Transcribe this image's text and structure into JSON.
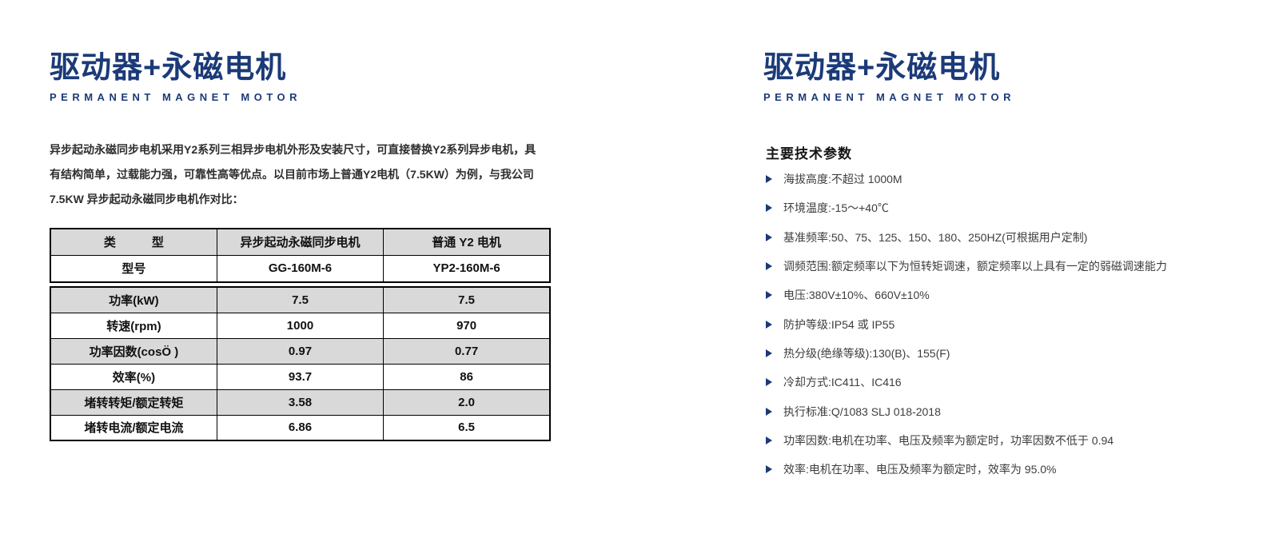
{
  "page": {
    "colors": {
      "accent": "#1b3a78",
      "table_gray": "#d9d9d9"
    },
    "left": {
      "title": "驱动器+永磁电机",
      "subtitle": "PERMANENT MAGNET MOTOR",
      "intro_lines": [
        "异步起动永磁同步电机采用Y2系列三相异步电机外形及安装尺寸，可直接替换Y2系列异步电机，具",
        "有结构简单，过载能力强，可靠性高等优点。以目前市场上普通Y2电机（7.5KW）为例，与我公司",
        "7.5KW 异步起动永磁同步电机作对比："
      ],
      "table": {
        "headers": [
          "类　　　型",
          "异步起动永磁同步电机",
          "普通 Y2 电机"
        ],
        "rows": [
          {
            "label": "型号",
            "pm": "GG-160M-6",
            "y2": "YP2-160M-6"
          },
          {
            "label": "功率(kW)",
            "pm": "7.5",
            "y2": "7.5"
          },
          {
            "label": "转速(rpm)",
            "pm": "1000",
            "y2": "970"
          },
          {
            "label": "功率因数(cosÖ )",
            "pm": "0.97",
            "y2": "0.77"
          },
          {
            "label": "效率(%)",
            "pm": "93.7",
            "y2": "86"
          },
          {
            "label": "堵转转矩/额定转矩",
            "pm": "3.58",
            "y2": "2.0"
          },
          {
            "label": "堵转电流/额定电流",
            "pm": "6.86",
            "y2": "6.5"
          }
        ]
      }
    },
    "right": {
      "title": "驱动器+永磁电机",
      "subtitle": "PERMANENT MAGNET MOTOR",
      "params_heading": "主要技术参数",
      "params": [
        "海拔高度:不超过 1000M",
        "环境温度:-15～+40℃",
        "基准频率:50、75、125、150、180、250HZ(可根据用户定制)",
        "调频范围:额定频率以下为恒转矩调速，额定频率以上具有一定的弱磁调速能力",
        "电压:380V±10%、660V±10%",
        "防护等级:IP54 或 IP55",
        "热分级(绝缘等级):130(B)、155(F)",
        "冷却方式:IC411、IC416",
        "执行标准:Q/1083 SLJ 018-2018",
        "功率因数:电机在功率、电压及频率为额定时，功率因数不低于 0.94",
        "效率:电机在功率、电压及频率为额定时，效率为 95.0%"
      ]
    }
  }
}
